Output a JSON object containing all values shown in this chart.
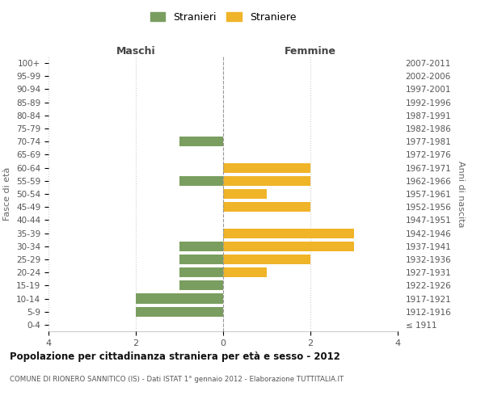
{
  "age_groups": [
    "100+",
    "95-99",
    "90-94",
    "85-89",
    "80-84",
    "75-79",
    "70-74",
    "65-69",
    "60-64",
    "55-59",
    "50-54",
    "45-49",
    "40-44",
    "35-39",
    "30-34",
    "25-29",
    "20-24",
    "15-19",
    "10-14",
    "5-9",
    "0-4"
  ],
  "birth_years": [
    "≤ 1911",
    "1912-1916",
    "1917-1921",
    "1922-1926",
    "1927-1931",
    "1932-1936",
    "1937-1941",
    "1942-1946",
    "1947-1951",
    "1952-1956",
    "1957-1961",
    "1962-1966",
    "1967-1971",
    "1972-1976",
    "1977-1981",
    "1982-1986",
    "1987-1991",
    "1992-1996",
    "1997-2001",
    "2002-2006",
    "2007-2011"
  ],
  "maschi": [
    0,
    0,
    0,
    0,
    0,
    0,
    1,
    0,
    0,
    1,
    0,
    0,
    0,
    0,
    1,
    1,
    1,
    1,
    2,
    2,
    0
  ],
  "femmine": [
    0,
    0,
    0,
    0,
    0,
    0,
    0,
    0,
    2,
    2,
    1,
    2,
    0,
    3,
    3,
    2,
    1,
    0,
    0,
    0,
    0
  ],
  "color_maschi": "#7a9e5f",
  "color_femmine": "#f0b429",
  "background_color": "#ffffff",
  "grid_color": "#cccccc",
  "title": "Popolazione per cittadinanza straniera per età e sesso - 2012",
  "subtitle": "COMUNE DI RIONERO SANNITICO (IS) - Dati ISTAT 1° gennaio 2012 - Elaborazione TUTTITALIA.IT",
  "legend_stranieri": "Stranieri",
  "legend_straniere": "Straniere",
  "label_maschi": "Maschi",
  "label_femmine": "Femmine",
  "ylabel_left": "Fasce di età",
  "ylabel_right": "Anni di nascita",
  "xlim": 4,
  "bar_height": 0.75
}
